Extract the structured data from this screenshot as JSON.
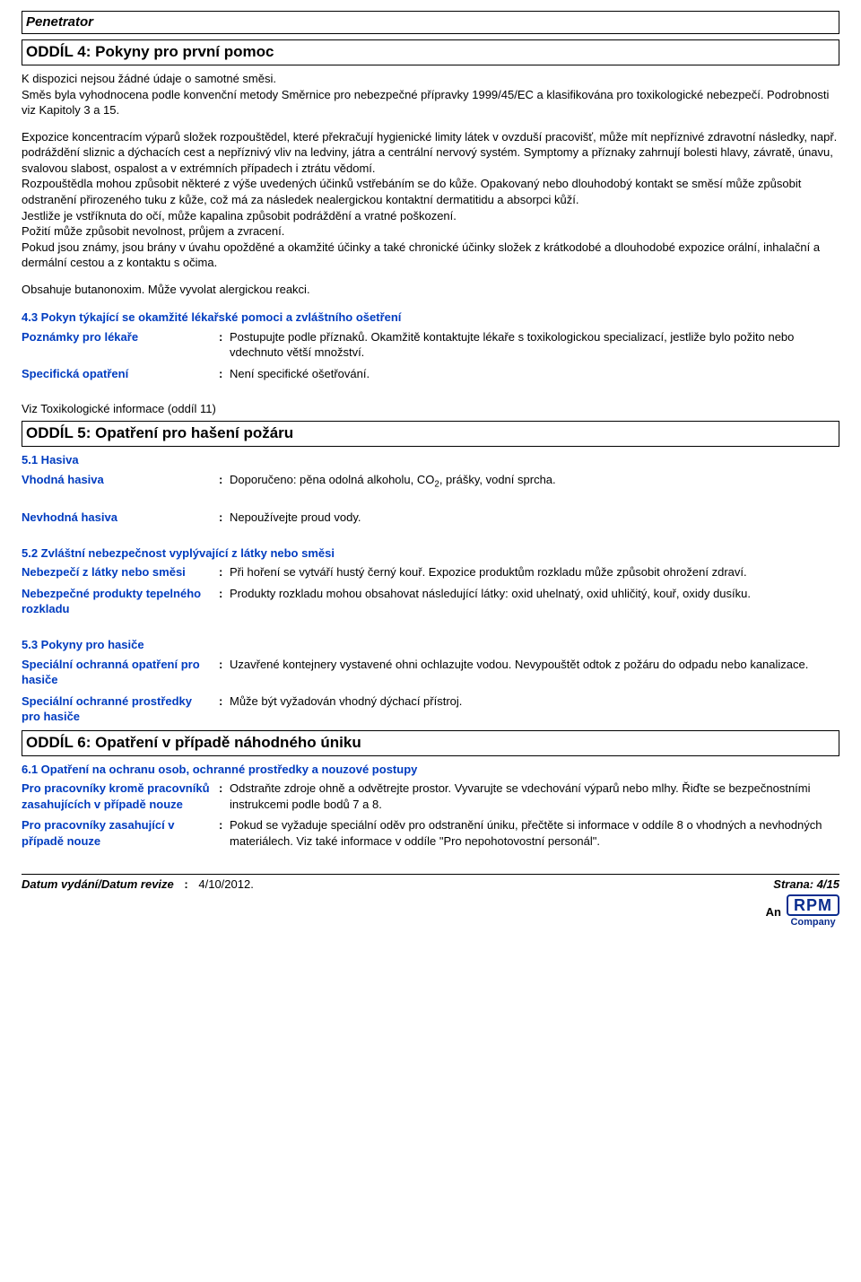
{
  "product_name": "Penetrator",
  "section4": {
    "title": "ODDÍL 4: Pokyny pro první pomoc",
    "paragraphs": [
      "K dispozici nejsou žádné údaje o samotné směsi.",
      "Směs byla vyhodnocena podle konvenční metody Směrnice pro nebezpečné přípravky 1999/45/EC a klasifikována pro toxikologické nebezpečí. Podrobnosti viz Kapitoly 3 a 15.",
      "Expozice koncentracím výparů složek rozpouštědel, které překračují hygienické limity látek v ovzduší pracovišť, může mít nepříznivé zdravotní následky, např. podráždění sliznic a dýchacích cest a nepříznivý vliv na ledviny, játra a centrální nervový systém. Symptomy a příznaky zahrnují bolesti hlavy, závratě, únavu, svalovou slabost, ospalost a v extrémních případech i ztrátu vědomí.",
      "Rozpouštědla mohou způsobit některé z výše uvedených účinků vstřebáním se do kůže. Opakovaný nebo dlouhodobý kontakt se směsí může způsobit odstranění přirozeného tuku z kůže, což má za následek nealergickou kontaktní dermatitidu a absorpci kůží.",
      "Jestliže je vstříknuta do očí, může kapalina způsobit podráždění a vratné poškození.",
      "Požití může způsobit nevolnost, průjem a zvracení.",
      "Pokud jsou známy, jsou brány v úvahu opožděné a okamžité účinky a také chronické účinky složek z krátkodobé a dlouhodobé expozice orální, inhalační a dermální cestou a z kontaktu s očima.",
      "Obsahuje butanonoxim. Může vyvolat alergickou reakci."
    ],
    "sub43": "4.3 Pokyn týkající se okamžité lékařské pomoci a zvláštního ošetření",
    "rows": [
      {
        "label": "Poznámky pro lékaře",
        "value": "Postupujte podle příznaků. Okamžitě kontaktujte lékaře s toxikologickou specializací, jestliže bylo požito nebo vdechnuto větší množství."
      },
      {
        "label": "Specifická opatření",
        "value": "Není specifické ošetřování."
      }
    ],
    "toxnote": "Viz Toxikologické informace (oddíl 11)"
  },
  "section5": {
    "title": "ODDÍL 5: Opatření pro hašení požáru",
    "sub51": "5.1 Hasiva",
    "rows51": [
      {
        "label": "Vhodná hasiva",
        "value_pre": "Doporučeno: pěna odolná alkoholu, CO",
        "value_post": ", prášky, vodní sprcha."
      },
      {
        "label": "Nevhodná hasiva",
        "value": "Nepoužívejte proud vody."
      }
    ],
    "sub52": "5.2 Zvláštní nebezpečnost vyplývající z látky nebo směsi",
    "rows52": [
      {
        "label": "Nebezpečí z látky nebo směsi",
        "value": "Při hoření se vytváří hustý černý kouř. Expozice produktům rozkladu může způsobit ohrožení zdraví."
      },
      {
        "label": "Nebezpečné produkty tepelného rozkladu",
        "value": "Produkty rozkladu mohou obsahovat následující látky: oxid uhelnatý, oxid uhličitý, kouř, oxidy dusíku."
      }
    ],
    "sub53": "5.3 Pokyny pro hasiče",
    "rows53": [
      {
        "label": "Speciální ochranná opatření pro hasiče",
        "value": "Uzavřené kontejnery vystavené ohni ochlazujte vodou. Nevypouštět odtok z požáru do odpadu nebo kanalizace."
      },
      {
        "label": "Speciální ochranné prostředky pro hasiče",
        "value": "Může být vyžadován vhodný dýchací přístroj."
      }
    ]
  },
  "section6": {
    "title": "ODDÍL 6: Opatření v případě náhodného úniku",
    "sub61": "6.1 Opatření na ochranu osob, ochranné prostředky a nouzové postupy",
    "rows61": [
      {
        "label": "Pro pracovníky kromě pracovníků zasahujících v případě nouze",
        "value": "Odstraňte zdroje ohně a odvětrejte prostor. Vyvarujte se vdechování výparů nebo mlhy. Řiďte se bezpečnostními instrukcemi podle bodů 7 a 8."
      },
      {
        "label": "Pro pracovníky zasahující v případě nouze",
        "value": "Pokud se vyžaduje speciální oděv pro odstranění úniku, přečtěte si informace v oddíle 8 o vhodných a nevhodných materiálech. Viz také informace v oddíle \"Pro nepohotovostní personál\"."
      }
    ]
  },
  "footer": {
    "date_label": "Datum vydání/Datum revize",
    "date_value": "4/10/2012.",
    "page": "Strana: 4/15",
    "an": "An",
    "rpm": "RPM",
    "company": "Company"
  }
}
